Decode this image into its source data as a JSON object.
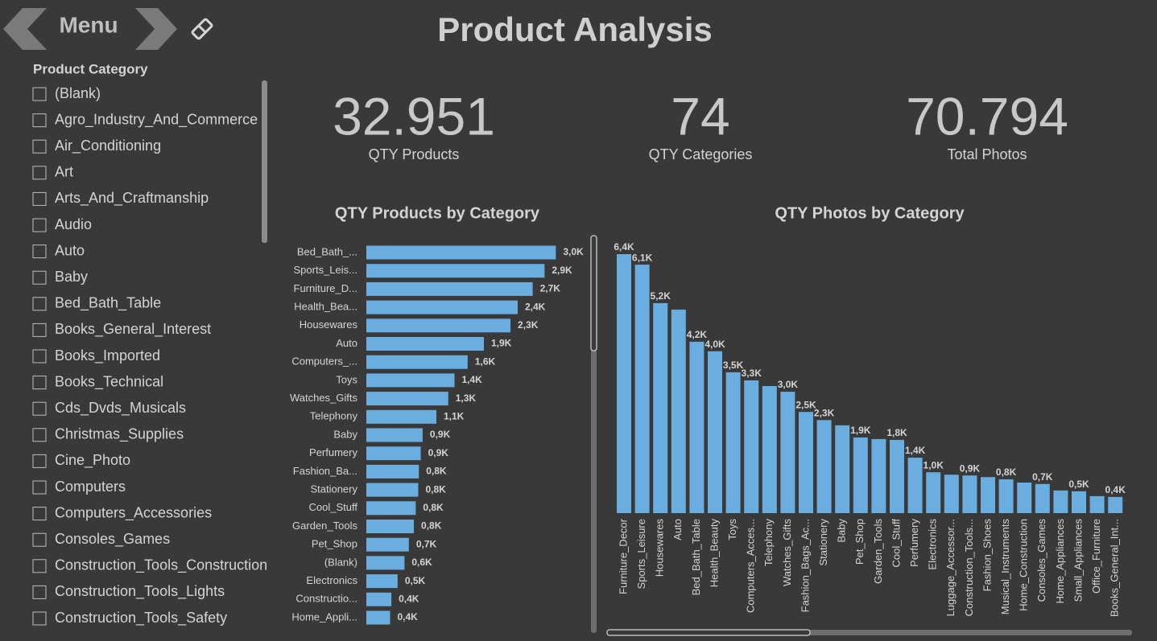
{
  "header": {
    "menu": "Menu",
    "title": "Product Analysis"
  },
  "slicer": {
    "title": "Product Category",
    "items": [
      "(Blank)",
      "Agro_Industry_And_Commerce",
      "Air_Conditioning",
      "Art",
      "Arts_And_Craftmanship",
      "Audio",
      "Auto",
      "Baby",
      "Bed_Bath_Table",
      "Books_General_Interest",
      "Books_Imported",
      "Books_Technical",
      "Cds_Dvds_Musicals",
      "Christmas_Supplies",
      "Cine_Photo",
      "Computers",
      "Computers_Accessories",
      "Consoles_Games",
      "Construction_Tools_Construction",
      "Construction_Tools_Lights",
      "Construction_Tools_Safety"
    ]
  },
  "kpis": [
    {
      "value": "32.951",
      "label": "QTY Products"
    },
    {
      "value": "74",
      "label": "QTY Categories"
    },
    {
      "value": "70.794",
      "label": "Total Photos"
    }
  ],
  "chart_data": [
    {
      "type": "hbar",
      "title": "QTY Products by Category",
      "color": "#6aaee0",
      "categories": [
        "Bed_Bath_...",
        "Sports_Leis...",
        "Furniture_D...",
        "Health_Bea...",
        "Housewares",
        "Auto",
        "Computers_...",
        "Toys",
        "Watches_Gifts",
        "Telephony",
        "Baby",
        "Perfumery",
        "Fashion_Ba...",
        "Stationery",
        "Cool_Stuff",
        "Garden_Tools",
        "Pet_Shop",
        "(Blank)",
        "Electronics",
        "Constructio...",
        "Home_Appli..."
      ],
      "values": [
        3030,
        2850,
        2660,
        2420,
        2305,
        1880,
        1620,
        1410,
        1310,
        1120,
        900,
        870,
        840,
        830,
        790,
        760,
        680,
        610,
        500,
        400,
        380
      ],
      "value_labels": [
        "3,0K",
        "2,9K",
        "2,7K",
        "2,4K",
        "2,3K",
        "1,9K",
        "1,6K",
        "1,4K",
        "1,3K",
        "1,1K",
        "0,9K",
        "0,9K",
        "0,8K",
        "0,8K",
        "0,8K",
        "0,8K",
        "0,7K",
        "0,6K",
        "0,5K",
        "0,4K",
        "0,4K"
      ]
    },
    {
      "type": "bar",
      "title": "QTY Photos by Category",
      "color": "#6aaee0",
      "categories": [
        "Furniture_Decor",
        "Sports_Leisure",
        "Housewares",
        "Auto",
        "Bed_Bath_Table",
        "Health_Beauty",
        "Toys",
        "Computers_Acces...",
        "Telephony",
        "Watches_Gifts",
        "Fashion_Bags_Ac...",
        "Stationery",
        "Baby",
        "Pet_Shop",
        "Garden_Tools",
        "Cool_Stuff",
        "Perfumery",
        "Electronics",
        "Luggage_Accessor...",
        "Construction_Tools...",
        "Fashion_Shoes",
        "Musical_Instruments",
        "Home_Construction",
        "Consoles_Games",
        "Home_Appliances",
        "Small_Appliances",
        "Office_Furniture",
        "Books_General_Int..."
      ],
      "values": [
        6400,
        6140,
        5190,
        5030,
        4235,
        4000,
        3480,
        3280,
        3140,
        3000,
        2500,
        2300,
        2170,
        1870,
        1830,
        1810,
        1370,
        1010,
        950,
        930,
        890,
        835,
        755,
        720,
        560,
        540,
        420,
        400
      ],
      "value_labels": [
        "6,4K",
        "6,1K",
        "5,2K",
        null,
        "4,2K",
        "4,0K",
        "3,5K",
        "3,3K",
        null,
        "3,0K",
        "2,5K",
        "2,3K",
        null,
        "1,9K",
        null,
        "1,8K",
        "1,4K",
        "1,0K",
        null,
        "0,9K",
        null,
        "0,8K",
        null,
        "0,7K",
        null,
        "0,5K",
        null,
        "0,4K"
      ]
    }
  ]
}
